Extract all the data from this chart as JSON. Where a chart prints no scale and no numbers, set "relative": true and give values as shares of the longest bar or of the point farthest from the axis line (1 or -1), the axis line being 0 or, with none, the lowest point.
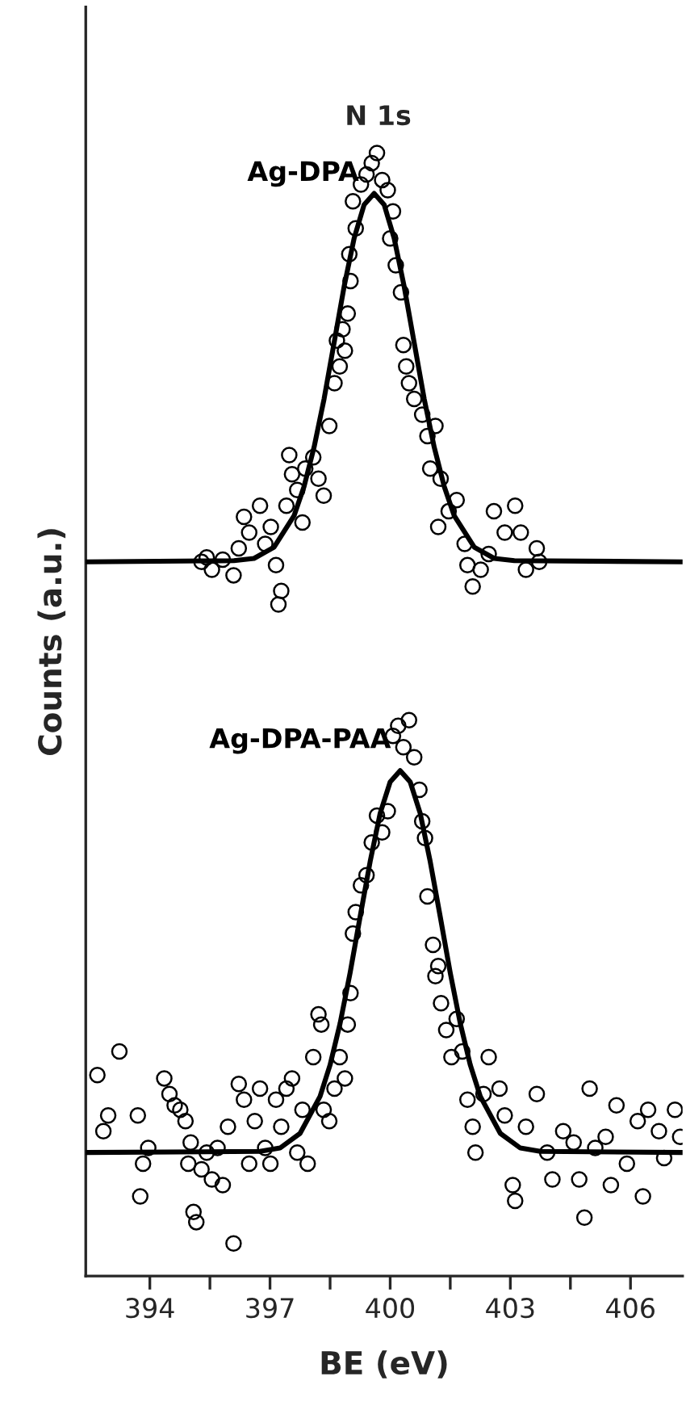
{
  "chart_data": {
    "type": "line",
    "relative": true,
    "xlabel": "BE (eV)",
    "ylabel": "Counts (a.u.)",
    "annotations": [
      "N 1s"
    ],
    "xlim": [
      392.4,
      407.3
    ],
    "xticks": [
      394,
      {
        "value": 395.5,
        "label": null
      },
      397,
      {
        "value": 398.5,
        "label": null
      },
      400,
      {
        "value": 401.5,
        "label": null
      },
      403,
      {
        "value": 404.5,
        "label": null
      },
      406
    ],
    "series": [
      {
        "name": "Ag-DPA",
        "type": "scatter",
        "marker": "circle",
        "color": "#000000",
        "x": [
          395.29,
          395.55,
          395.42,
          395.82,
          396.09,
          396.22,
          396.35,
          396.48,
          396.75,
          396.88,
          397.02,
          397.15,
          397.21,
          397.28,
          397.41,
          397.55,
          397.68,
          397.81,
          397.48,
          397.88,
          398.08,
          398.21,
          398.34,
          398.48,
          398.61,
          398.74,
          398.67,
          398.87,
          398.81,
          398.94,
          399.01,
          398.98,
          399.14,
          399.07,
          399.27,
          399.41,
          399.54,
          399.67,
          399.8,
          399.94,
          400.07,
          400.0,
          400.14,
          400.27,
          400.33,
          400.4,
          400.47,
          400.6,
          400.8,
          400.93,
          401.13,
          401.0,
          401.26,
          401.2,
          401.46,
          401.66,
          401.86,
          401.93,
          402.06,
          402.26,
          402.46,
          402.59,
          402.86,
          403.12,
          403.26,
          403.39,
          403.66,
          403.72
        ],
        "values": [
          0.636,
          0.629,
          0.64,
          0.638,
          0.624,
          0.648,
          0.676,
          0.662,
          0.686,
          0.652,
          0.667,
          0.633,
          0.598,
          0.61,
          0.686,
          0.714,
          0.7,
          0.671,
          0.731,
          0.719,
          0.729,
          0.71,
          0.695,
          0.757,
          0.795,
          0.81,
          0.833,
          0.824,
          0.843,
          0.857,
          0.886,
          0.91,
          0.933,
          0.957,
          0.972,
          0.981,
          0.991,
          1.0,
          0.976,
          0.967,
          0.948,
          0.924,
          0.9,
          0.876,
          0.829,
          0.81,
          0.795,
          0.781,
          0.767,
          0.748,
          0.757,
          0.719,
          0.71,
          0.667,
          0.681,
          0.691,
          0.652,
          0.633,
          0.614,
          0.629,
          0.643,
          0.681,
          0.662,
          0.686,
          0.662,
          0.629,
          0.648,
          0.636
        ]
      },
      {
        "color": "#000000",
        "x": [
          392.4,
          396.1,
          396.6,
          397.1,
          397.6,
          397.85,
          398.1,
          398.35,
          398.6,
          398.85,
          399.1,
          399.35,
          399.6,
          399.85,
          400.1,
          400.35,
          400.6,
          400.85,
          401.1,
          401.35,
          401.6,
          402.1,
          402.6,
          403.1,
          407.3
        ],
        "values": [
          0.636,
          0.637,
          0.639,
          0.649,
          0.677,
          0.703,
          0.738,
          0.781,
          0.831,
          0.881,
          0.924,
          0.954,
          0.964,
          0.954,
          0.924,
          0.881,
          0.831,
          0.781,
          0.738,
          0.703,
          0.677,
          0.649,
          0.639,
          0.637,
          0.636
        ]
      },
      {
        "name": "Ag-DPA-PAA",
        "type": "scatter",
        "marker": "circle",
        "color": "#000000",
        "x": [
          392.69,
          392.84,
          392.96,
          393.24,
          393.7,
          393.83,
          393.76,
          393.96,
          394.36,
          394.49,
          394.62,
          394.76,
          394.89,
          395.02,
          394.96,
          395.09,
          395.16,
          395.29,
          395.42,
          395.55,
          395.69,
          395.82,
          395.95,
          396.09,
          396.22,
          396.35,
          396.48,
          396.62,
          396.75,
          396.88,
          397.01,
          397.15,
          397.28,
          397.41,
          397.55,
          397.68,
          397.81,
          397.94,
          398.08,
          398.21,
          398.28,
          398.34,
          398.48,
          398.61,
          398.74,
          398.87,
          398.94,
          399.01,
          399.07,
          399.14,
          399.27,
          399.41,
          399.54,
          399.67,
          399.8,
          399.94,
          400.07,
          400.2,
          400.33,
          400.47,
          400.6,
          400.73,
          400.8,
          400.87,
          400.93,
          401.07,
          401.13,
          401.2,
          401.27,
          401.4,
          401.53,
          401.66,
          401.8,
          401.93,
          402.06,
          402.13,
          402.33,
          402.46,
          402.73,
          402.86,
          403.06,
          403.12,
          403.39,
          403.66,
          403.92,
          404.05,
          404.32,
          404.58,
          404.72,
          404.85,
          404.98,
          405.12,
          405.38,
          405.51,
          405.65,
          405.91,
          406.18,
          406.31,
          406.44,
          406.71,
          406.84,
          407.11,
          407.24
        ],
        "values": [
          0.179,
          0.129,
          0.143,
          0.2,
          0.143,
          0.1,
          0.071,
          0.114,
          0.176,
          0.162,
          0.152,
          0.148,
          0.138,
          0.119,
          0.1,
          0.057,
          0.048,
          0.095,
          0.11,
          0.086,
          0.114,
          0.081,
          0.133,
          0.029,
          0.171,
          0.157,
          0.1,
          0.138,
          0.167,
          0.114,
          0.1,
          0.157,
          0.133,
          0.167,
          0.176,
          0.11,
          0.148,
          0.1,
          0.195,
          0.233,
          0.224,
          0.148,
          0.138,
          0.167,
          0.195,
          0.176,
          0.224,
          0.252,
          0.305,
          0.324,
          0.348,
          0.357,
          0.386,
          0.41,
          0.395,
          0.414,
          0.481,
          0.49,
          0.471,
          0.495,
          0.462,
          0.433,
          0.405,
          0.39,
          0.338,
          0.295,
          0.267,
          0.276,
          0.243,
          0.219,
          0.195,
          0.229,
          0.2,
          0.157,
          0.133,
          0.11,
          0.162,
          0.195,
          0.167,
          0.143,
          0.081,
          0.067,
          0.133,
          0.162,
          0.11,
          0.086,
          0.129,
          0.119,
          0.086,
          0.052,
          0.167,
          0.114,
          0.124,
          0.081,
          0.152,
          0.1,
          0.138,
          0.071,
          0.148,
          0.129,
          0.105,
          0.148,
          0.124
        ]
      },
      {
        "color": "#000000",
        "x": [
          392.4,
          396.75,
          397.25,
          397.75,
          398.25,
          398.5,
          398.75,
          399.0,
          399.25,
          399.5,
          399.75,
          400.0,
          400.25,
          400.5,
          400.75,
          401.0,
          401.25,
          401.5,
          401.75,
          402.0,
          402.25,
          402.75,
          403.25,
          403.75,
          407.3
        ],
        "values": [
          0.11,
          0.111,
          0.114,
          0.127,
          0.16,
          0.188,
          0.225,
          0.27,
          0.32,
          0.369,
          0.412,
          0.44,
          0.45,
          0.44,
          0.412,
          0.369,
          0.32,
          0.27,
          0.225,
          0.188,
          0.16,
          0.127,
          0.114,
          0.111,
          0.11
        ]
      }
    ]
  }
}
